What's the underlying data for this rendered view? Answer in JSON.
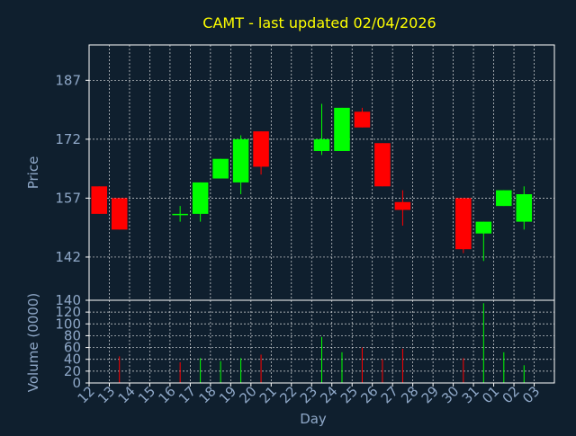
{
  "colors": {
    "background": "#0f1f2e",
    "plot_border": "#ffffff",
    "grid": "#ffffff",
    "title": "#ffff00",
    "axis_text": "#8fa8c8",
    "up": "#00ff00",
    "down": "#ff0000"
  },
  "chart_data": [
    {
      "type": "candlestick",
      "title": "CAMT - last updated 02/04/2026",
      "ylabel": "Price",
      "ylim": [
        131,
        196
      ],
      "yticks": [
        142,
        157,
        172,
        187
      ],
      "grid": true,
      "candles": [
        {
          "day": "12",
          "open": 160,
          "high": 160,
          "low": 153,
          "close": 153
        },
        {
          "day": "13",
          "open": 157,
          "high": 157,
          "low": 149,
          "close": 149
        },
        {
          "day": "16",
          "open": 153,
          "high": 155,
          "low": 151,
          "close": 153
        },
        {
          "day": "17",
          "open": 153,
          "high": 161,
          "low": 151,
          "close": 161
        },
        {
          "day": "18",
          "open": 162,
          "high": 167,
          "low": 162,
          "close": 167
        },
        {
          "day": "19",
          "open": 161,
          "high": 173,
          "low": 158,
          "close": 172
        },
        {
          "day": "20",
          "open": 174,
          "high": 174,
          "low": 163,
          "close": 165
        },
        {
          "day": "23",
          "open": 169,
          "high": 181,
          "low": 168,
          "close": 172
        },
        {
          "day": "24",
          "open": 169,
          "high": 180,
          "low": 169,
          "close": 180
        },
        {
          "day": "25",
          "open": 179,
          "high": 180,
          "low": 175,
          "close": 175
        },
        {
          "day": "26",
          "open": 171,
          "high": 171,
          "low": 160,
          "close": 160
        },
        {
          "day": "27",
          "open": 156,
          "high": 159,
          "low": 150,
          "close": 154
        },
        {
          "day": "30",
          "open": 157,
          "high": 157,
          "low": 143,
          "close": 144
        },
        {
          "day": "31",
          "open": 148,
          "high": 151,
          "low": 141,
          "close": 151
        },
        {
          "day": "01",
          "open": 155,
          "high": 159,
          "low": 155,
          "close": 159
        },
        {
          "day": "02",
          "open": 151,
          "high": 160,
          "low": 149,
          "close": 158
        }
      ]
    },
    {
      "type": "bar",
      "ylabel": "Volume (0000)",
      "xlabel": "Day",
      "ylim": [
        0,
        140
      ],
      "yticks": [
        0,
        20,
        40,
        60,
        80,
        100,
        120,
        140
      ],
      "xticks": [
        "12",
        "13",
        "14",
        "15",
        "16",
        "17",
        "18",
        "19",
        "20",
        "21",
        "22",
        "23",
        "24",
        "25",
        "26",
        "27",
        "28",
        "29",
        "30",
        "31",
        "01",
        "02",
        "03"
      ],
      "bars": [
        {
          "day": "12",
          "value": 0,
          "direction": "down"
        },
        {
          "day": "13",
          "value": 45,
          "direction": "down"
        },
        {
          "day": "16",
          "value": 35,
          "direction": "down"
        },
        {
          "day": "17",
          "value": 42,
          "direction": "up"
        },
        {
          "day": "18",
          "value": 37,
          "direction": "up"
        },
        {
          "day": "19",
          "value": 42,
          "direction": "up"
        },
        {
          "day": "20",
          "value": 48,
          "direction": "down"
        },
        {
          "day": "23",
          "value": 78,
          "direction": "up"
        },
        {
          "day": "24",
          "value": 52,
          "direction": "up"
        },
        {
          "day": "25",
          "value": 60,
          "direction": "down"
        },
        {
          "day": "26",
          "value": 40,
          "direction": "down"
        },
        {
          "day": "27",
          "value": 58,
          "direction": "down"
        },
        {
          "day": "30",
          "value": 42,
          "direction": "down"
        },
        {
          "day": "31",
          "value": 135,
          "direction": "up"
        },
        {
          "day": "01",
          "value": 52,
          "direction": "up"
        },
        {
          "day": "02",
          "value": 30,
          "direction": "up"
        }
      ]
    }
  ]
}
